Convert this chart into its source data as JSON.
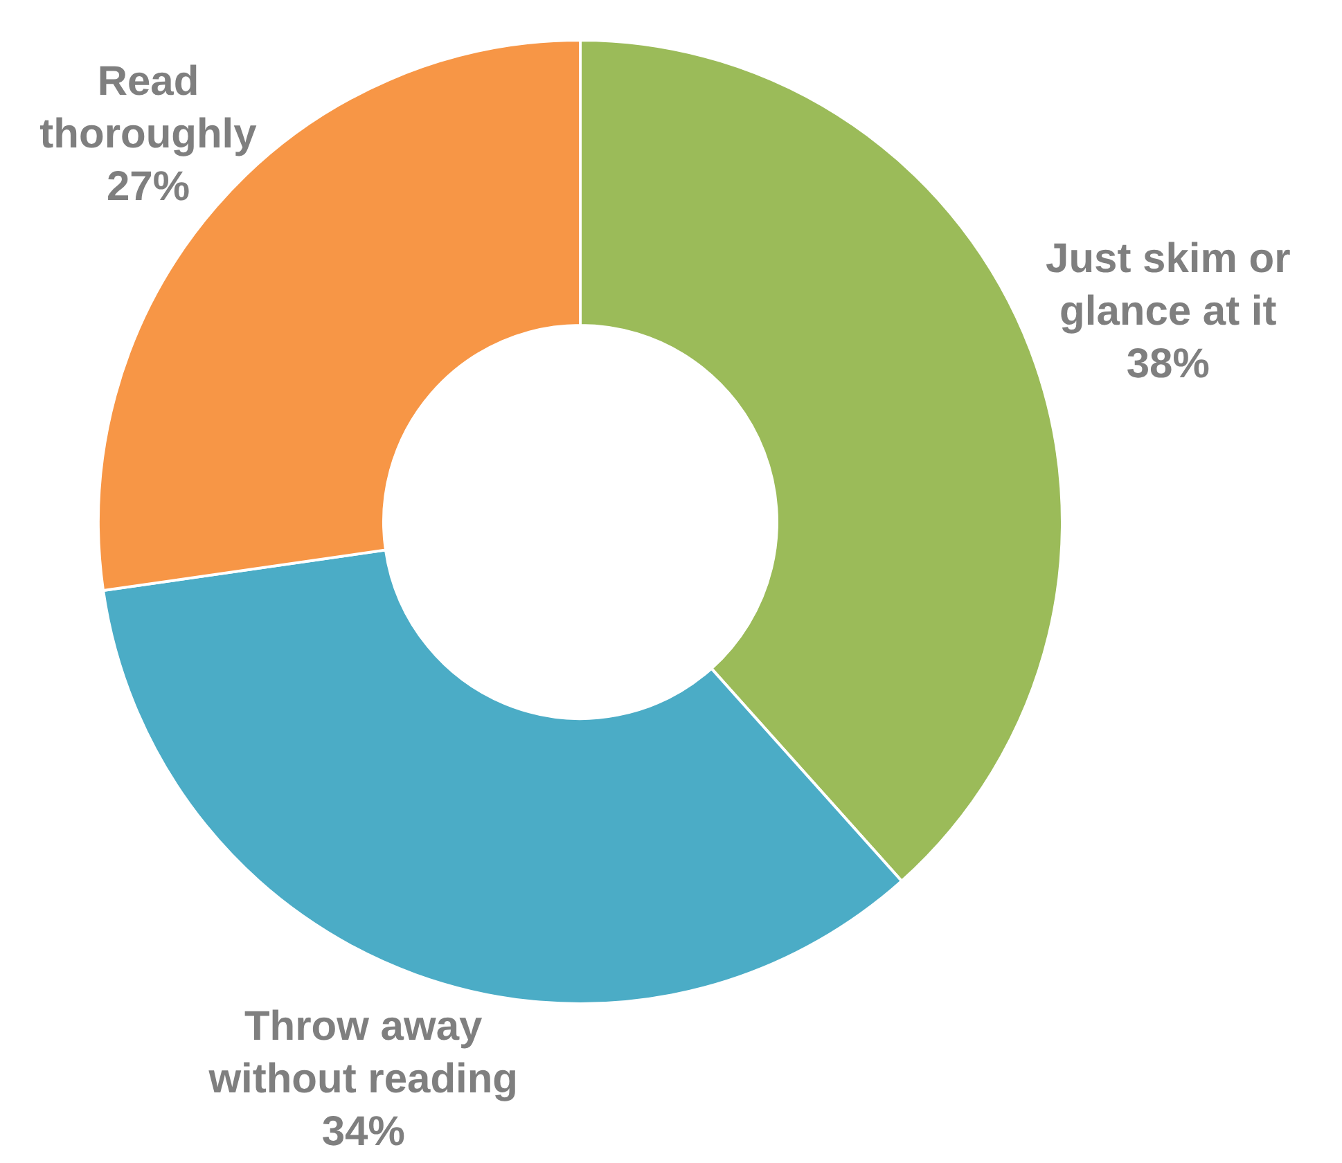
{
  "chart_data": {
    "type": "donut",
    "categories": [
      "Just skim or glance at it",
      "Throw away without reading",
      "Read thoroughly"
    ],
    "values": [
      38,
      34,
      27
    ],
    "value_labels": [
      "38%",
      "34%",
      "27%"
    ],
    "colors": [
      "#9bbb59",
      "#4bacc6",
      "#f79646"
    ]
  }
}
